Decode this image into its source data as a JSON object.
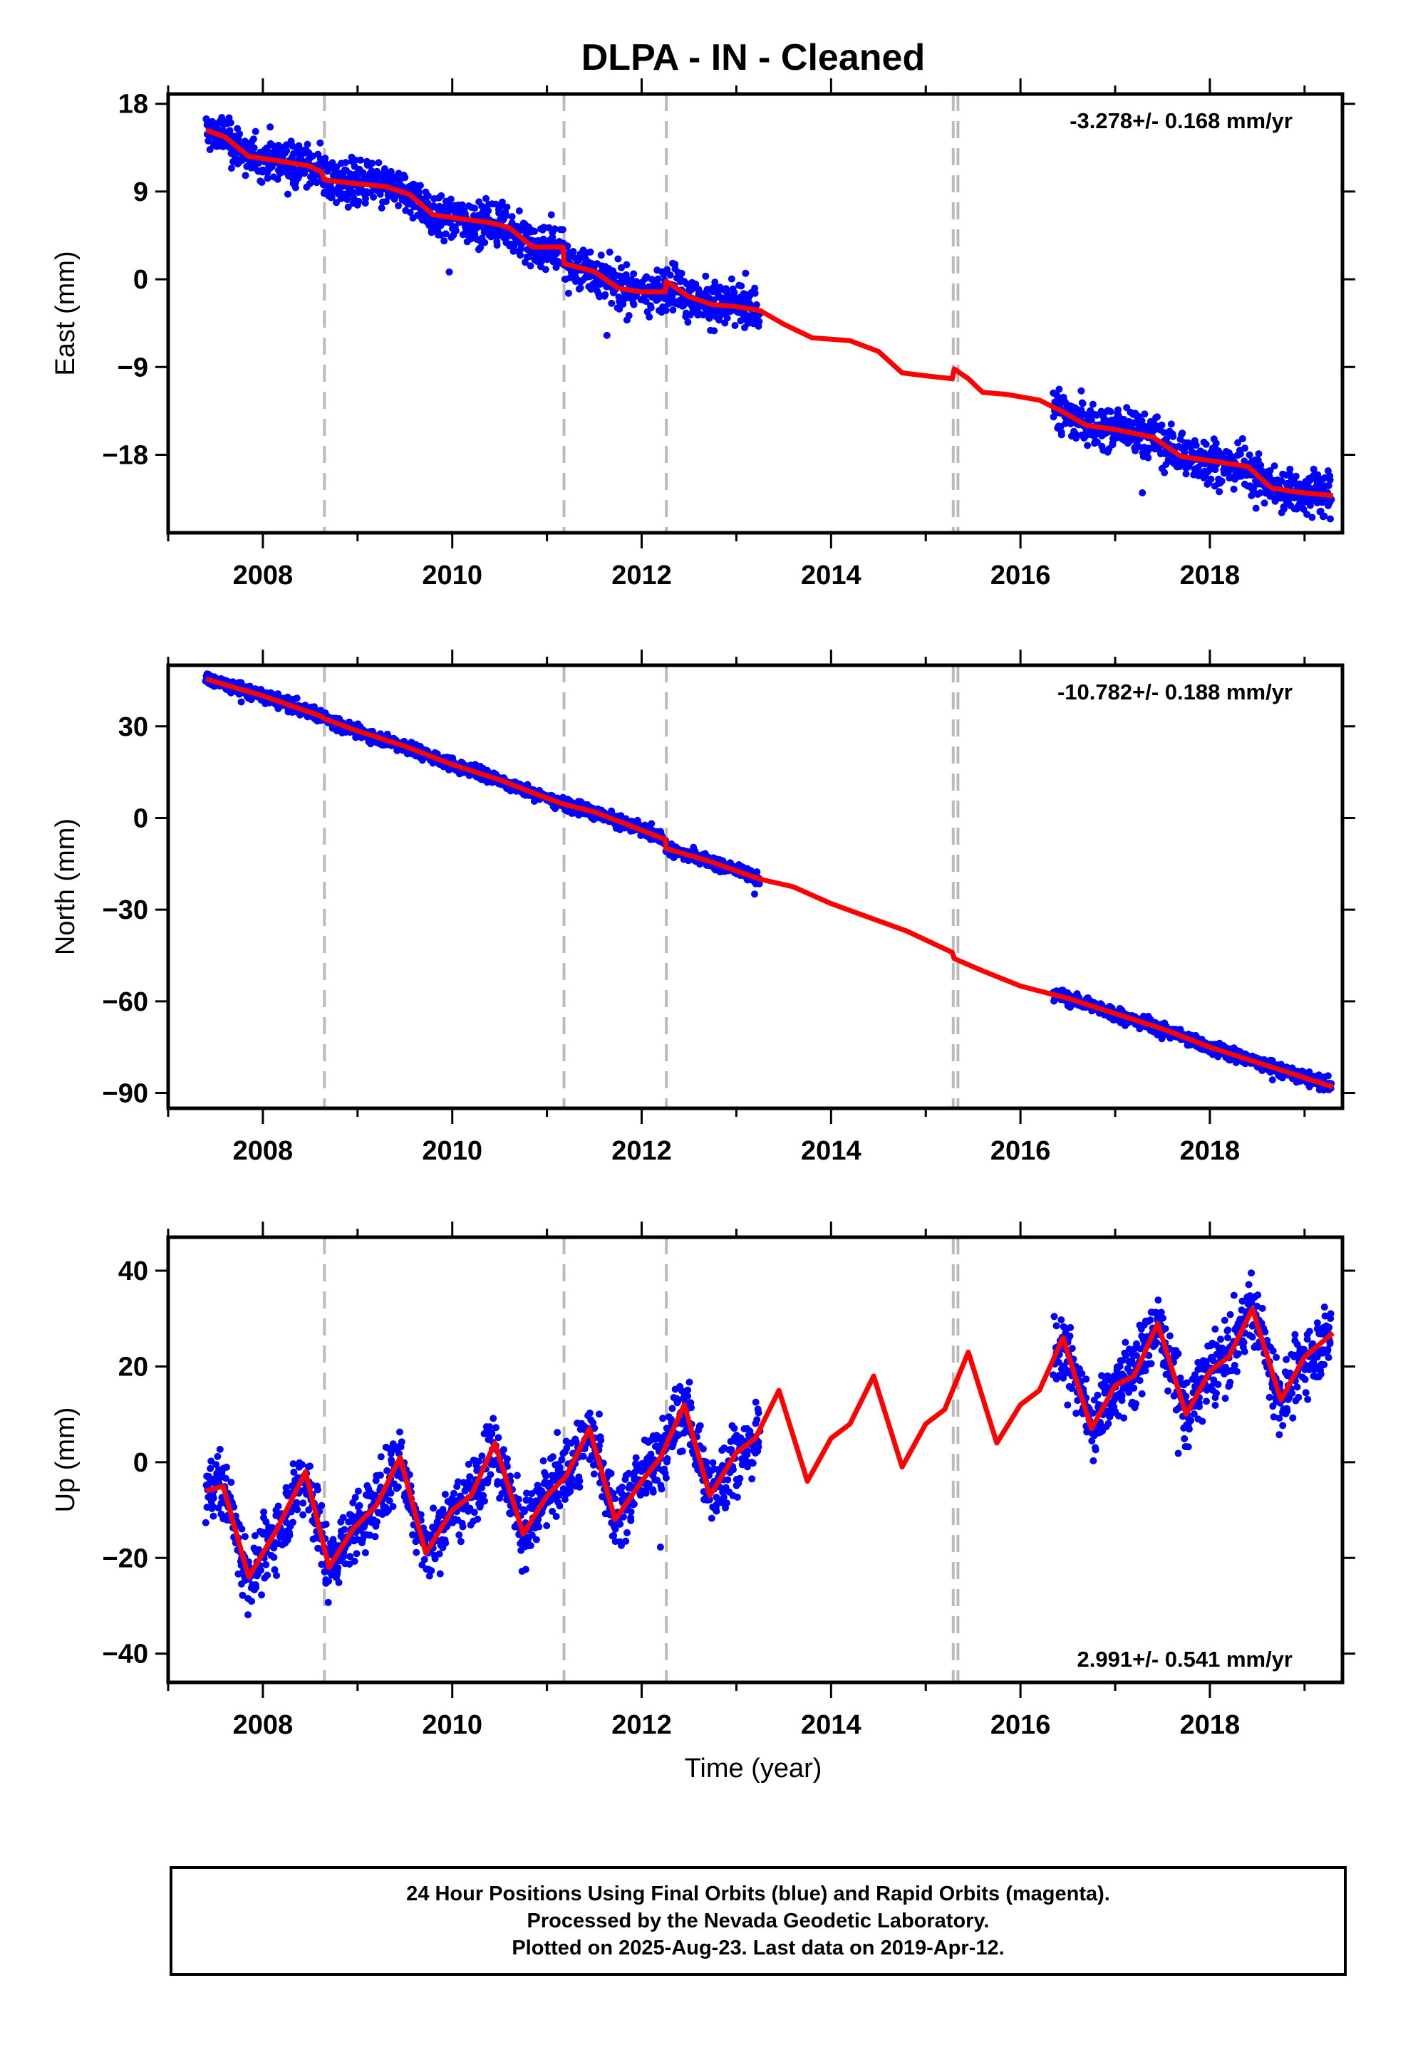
{
  "chart_data": {
    "title": "DLPA  - IN - Cleaned",
    "xlabel": "Time (year)",
    "xlim": [
      2007.0,
      2019.4
    ],
    "xticks": [
      "2008",
      "2010",
      "2012",
      "2014",
      "2016",
      "2018"
    ],
    "event_lines_x": [
      2008.65,
      2011.18,
      2012.26,
      2015.29,
      2015.34
    ],
    "colors": {
      "data": "#0000ff",
      "model": "#ff0000",
      "events": "#bbbbbb"
    },
    "data_spans": [
      [
        2007.4,
        2013.25
      ],
      [
        2016.35,
        2019.28
      ]
    ],
    "panels": [
      {
        "type": "scatter",
        "ylabel": "East (mm)",
        "ylim": [
          -26,
          19
        ],
        "yticks": [
          "18",
          "9",
          "0",
          "-9",
          "-18"
        ],
        "ytick_values": [
          18,
          9,
          0,
          -9,
          -18
        ],
        "rate": "-3.278+/- 0.168 mm/yr",
        "rate_position": "top-right",
        "noise": 1.6,
        "model_line": {
          "x": [
            2007.4,
            2007.6,
            2007.85,
            2008.2,
            2008.5,
            2008.62,
            2008.65,
            2008.9,
            2009.3,
            2009.55,
            2009.8,
            2010.1,
            2010.4,
            2010.6,
            2010.85,
            2011.17,
            2011.18,
            2011.5,
            2011.75,
            2012.0,
            2012.25,
            2012.26,
            2012.5,
            2012.75,
            2013.0,
            2013.25,
            2013.5,
            2013.8,
            2014.2,
            2014.5,
            2014.75,
            2015.0,
            2015.28,
            2015.3,
            2015.45,
            2015.6,
            2015.85,
            2016.2,
            2016.45,
            2016.7,
            2017.0,
            2017.4,
            2017.7,
            2018.0,
            2018.4,
            2018.65,
            2018.9,
            2019.3
          ],
          "y": [
            15.3,
            14.6,
            12.6,
            12.1,
            11.6,
            11.0,
            10.2,
            9.9,
            9.5,
            8.7,
            6.6,
            6.2,
            5.8,
            5.3,
            3.3,
            3.3,
            1.6,
            0.8,
            -0.9,
            -1.3,
            -1.3,
            -0.2,
            -1.8,
            -2.6,
            -2.8,
            -3.2,
            -4.6,
            -6.0,
            -6.3,
            -7.4,
            -9.6,
            -9.9,
            -10.2,
            -9.2,
            -10.2,
            -11.6,
            -11.8,
            -12.4,
            -13.6,
            -15.0,
            -15.4,
            -16.2,
            -18.2,
            -18.6,
            -19.2,
            -21.4,
            -21.8,
            -22.2
          ]
        }
      },
      {
        "type": "scatter",
        "ylabel": "North (mm)",
        "ylim": [
          -95,
          50
        ],
        "yticks": [
          "30",
          "0",
          "-30",
          "-60",
          "-90"
        ],
        "ytick_values": [
          30,
          0,
          -30,
          -60,
          -90
        ],
        "rate": "-10.782+/- 0.188 mm/yr",
        "rate_position": "top-right",
        "noise": 1.5,
        "model_line": {
          "x": [
            2007.4,
            2008.0,
            2008.6,
            2008.65,
            2009.0,
            2009.5,
            2010.0,
            2010.5,
            2011.0,
            2011.18,
            2011.5,
            2012.0,
            2012.25,
            2012.26,
            2012.7,
            2013.25,
            2013.6,
            2014.0,
            2014.4,
            2014.8,
            2015.28,
            2015.3,
            2015.6,
            2016.0,
            2016.5,
            2017.0,
            2017.5,
            2018.0,
            2018.6,
            2019.3
          ],
          "y": [
            45.5,
            40.0,
            33.5,
            32.5,
            28.5,
            23.5,
            17.5,
            12.5,
            6.5,
            4.5,
            2.0,
            -4.0,
            -7.0,
            -10.0,
            -14.0,
            -20.0,
            -22.5,
            -28.0,
            -32.5,
            -37.0,
            -44.0,
            -46.0,
            -50.0,
            -55.0,
            -59.0,
            -64.0,
            -69.0,
            -75.0,
            -81.0,
            -88.0
          ]
        }
      },
      {
        "type": "scatter",
        "ylabel": "Up (mm)",
        "ylim": [
          -46,
          47
        ],
        "yticks": [
          "40",
          "20",
          "0",
          "-20",
          "-40"
        ],
        "ytick_values": [
          40,
          20,
          0,
          -20,
          -40
        ],
        "rate": "2.991+/- 0.541 mm/yr",
        "rate_position": "bottom-right",
        "noise": 5.0,
        "model_line": {
          "x": [
            2007.4,
            2007.58,
            2007.85,
            2008.15,
            2008.45,
            2008.7,
            2008.95,
            2009.2,
            2009.45,
            2009.72,
            2010.0,
            2010.2,
            2010.45,
            2010.75,
            2011.0,
            2011.2,
            2011.45,
            2011.72,
            2012.0,
            2012.2,
            2012.45,
            2012.72,
            2013.0,
            2013.2,
            2013.45,
            2013.75,
            2014.0,
            2014.2,
            2014.45,
            2014.75,
            2015.0,
            2015.2,
            2015.45,
            2015.75,
            2016.0,
            2016.2,
            2016.45,
            2016.75,
            2017.0,
            2017.2,
            2017.45,
            2017.75,
            2018.0,
            2018.2,
            2018.45,
            2018.75,
            2019.0,
            2019.3
          ],
          "y": [
            -6,
            -5,
            -24,
            -14,
            -2,
            -22,
            -14,
            -9,
            1,
            -19,
            -10,
            -7,
            4,
            -15,
            -7,
            -3,
            7,
            -12,
            -4,
            1,
            12,
            -7,
            2,
            5,
            15,
            -4,
            5,
            8,
            18,
            -1,
            8,
            11,
            23,
            4,
            12,
            15,
            26,
            7,
            16,
            18,
            29,
            10,
            19,
            22,
            32,
            13,
            22,
            27
          ]
        }
      }
    ]
  },
  "footer": {
    "line1": "24 Hour Positions Using Final Orbits (blue) and Rapid Orbits (magenta).",
    "line2": "Processed by the Nevada Geodetic Laboratory.",
    "line3": "Plotted on 2025-Aug-23. Last data on 2019-Apr-12."
  }
}
